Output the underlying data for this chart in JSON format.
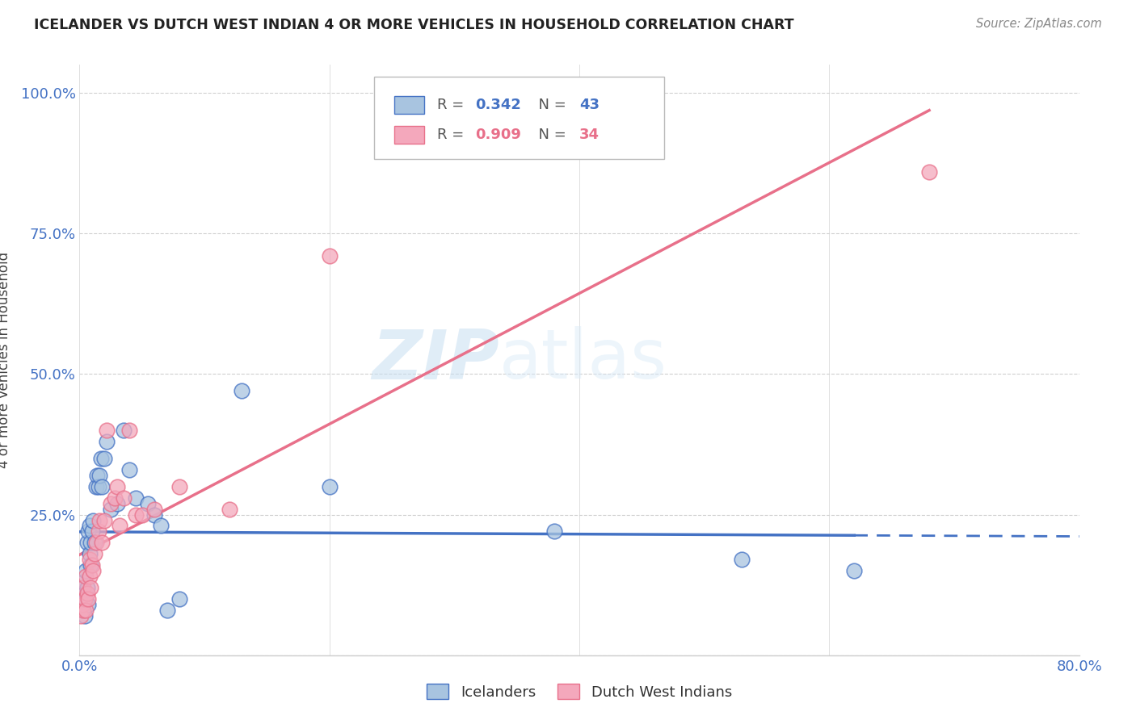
{
  "title": "ICELANDER VS DUTCH WEST INDIAN 4 OR MORE VEHICLES IN HOUSEHOLD CORRELATION CHART",
  "source": "Source: ZipAtlas.com",
  "ylabel": "4 or more Vehicles in Household",
  "x_min": 0.0,
  "x_max": 0.8,
  "y_min": 0.0,
  "y_max": 1.05,
  "icelander_color": "#a8c4e0",
  "dutch_color": "#f4a8bc",
  "icelander_line_color": "#4472c4",
  "dutch_line_color": "#e8708a",
  "legend_label1": "Icelanders",
  "legend_label2": "Dutch West Indians",
  "watermark_zip": "ZIP",
  "watermark_atlas": "atlas",
  "icelander_x": [
    0.001,
    0.002,
    0.002,
    0.003,
    0.003,
    0.004,
    0.004,
    0.005,
    0.005,
    0.006,
    0.006,
    0.007,
    0.007,
    0.008,
    0.008,
    0.009,
    0.009,
    0.01,
    0.011,
    0.012,
    0.013,
    0.014,
    0.015,
    0.016,
    0.017,
    0.018,
    0.02,
    0.022,
    0.025,
    0.03,
    0.035,
    0.04,
    0.045,
    0.055,
    0.06,
    0.065,
    0.07,
    0.08,
    0.13,
    0.2,
    0.38,
    0.53,
    0.62
  ],
  "icelander_y": [
    0.1,
    0.08,
    0.12,
    0.09,
    0.13,
    0.07,
    0.11,
    0.1,
    0.15,
    0.12,
    0.2,
    0.09,
    0.22,
    0.18,
    0.23,
    0.16,
    0.2,
    0.22,
    0.24,
    0.2,
    0.3,
    0.32,
    0.3,
    0.32,
    0.35,
    0.3,
    0.35,
    0.38,
    0.26,
    0.27,
    0.4,
    0.33,
    0.28,
    0.27,
    0.25,
    0.23,
    0.08,
    0.1,
    0.47,
    0.3,
    0.22,
    0.17,
    0.15
  ],
  "dutch_x": [
    0.001,
    0.002,
    0.003,
    0.003,
    0.004,
    0.005,
    0.005,
    0.006,
    0.007,
    0.008,
    0.008,
    0.009,
    0.01,
    0.011,
    0.012,
    0.013,
    0.015,
    0.016,
    0.018,
    0.02,
    0.022,
    0.025,
    0.028,
    0.03,
    0.032,
    0.035,
    0.04,
    0.045,
    0.05,
    0.06,
    0.08,
    0.12,
    0.2,
    0.68
  ],
  "dutch_y": [
    0.07,
    0.09,
    0.08,
    0.12,
    0.1,
    0.08,
    0.14,
    0.11,
    0.1,
    0.14,
    0.17,
    0.12,
    0.16,
    0.15,
    0.18,
    0.2,
    0.22,
    0.24,
    0.2,
    0.24,
    0.4,
    0.27,
    0.28,
    0.3,
    0.23,
    0.28,
    0.4,
    0.25,
    0.25,
    0.26,
    0.3,
    0.26,
    0.71,
    0.86
  ]
}
